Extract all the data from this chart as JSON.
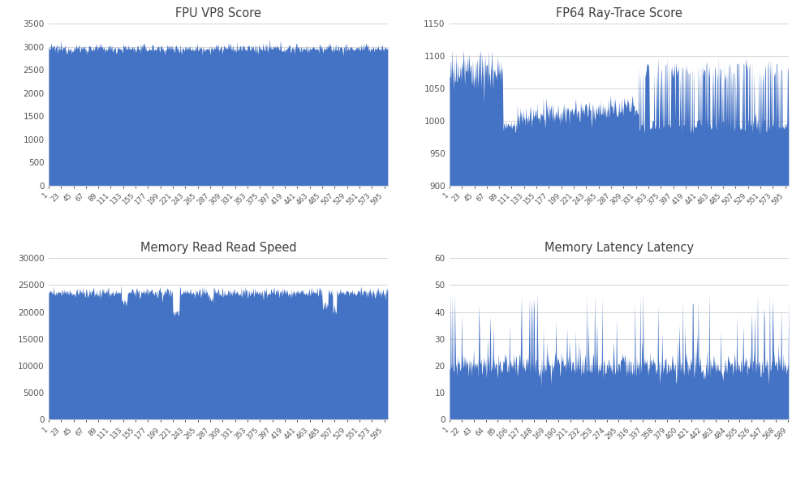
{
  "chart_bg": "#ffffff",
  "bar_color": "#4472C4",
  "title_color": "#404040",
  "grid_color": "#d9d9d9",
  "n_points_main": 601,
  "n_points_latency": 590,
  "subplots": [
    {
      "title": "FPU VP8 Score",
      "ylim": [
        0,
        3500
      ],
      "yticks": [
        0,
        500,
        1000,
        1500,
        2000,
        2500,
        3000,
        3500
      ],
      "fill_from": 0,
      "xtick_step": 22,
      "xtick_start": 1,
      "n_points": 601
    },
    {
      "title": "FP64 Ray-Trace Score",
      "ylim": [
        900,
        1150
      ],
      "yticks": [
        900,
        950,
        1000,
        1050,
        1100,
        1150
      ],
      "fill_from": 900,
      "xtick_step": 22,
      "xtick_start": 1,
      "n_points": 601
    },
    {
      "title": "Memory Read Read Speed",
      "ylim": [
        0,
        30000
      ],
      "yticks": [
        0,
        5000,
        10000,
        15000,
        20000,
        25000,
        30000
      ],
      "fill_from": 0,
      "xtick_step": 22,
      "xtick_start": 1,
      "n_points": 601
    },
    {
      "title": "Memory Latency Latency",
      "ylim": [
        0,
        60
      ],
      "yticks": [
        0,
        10,
        20,
        30,
        40,
        50,
        60
      ],
      "fill_from": 0,
      "xtick_step": 21,
      "xtick_start": 1,
      "n_points": 590
    }
  ]
}
